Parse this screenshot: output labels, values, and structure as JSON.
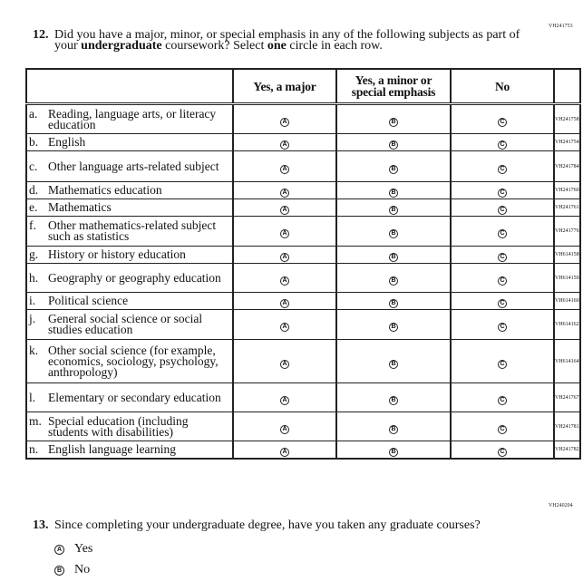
{
  "q12": {
    "code": "VH241753",
    "number": "12.",
    "text_parts": [
      "Did you have a major, minor, or special emphasis in any of the following subjects as part of your ",
      "undergraduate",
      " coursework? Select ",
      "one",
      " circle in each row."
    ],
    "columns": [
      "Yes, a major",
      "Yes, a minor or special emphasis",
      "No"
    ],
    "option_letters": [
      "A",
      "B",
      "C"
    ],
    "rows": [
      {
        "letter": "a.",
        "label": "Reading, language arts, or literacy education",
        "code": "VH241758"
      },
      {
        "letter": "b.",
        "label": "English",
        "code": "VH241754"
      },
      {
        "letter": "c.",
        "label": "Other language arts-related subject",
        "code": "VH241784"
      },
      {
        "letter": "d.",
        "label": "Mathematics education",
        "code": "VH241760"
      },
      {
        "letter": "e.",
        "label": "Mathematics",
        "code": "VH241761"
      },
      {
        "letter": "f.",
        "label": "Other mathematics-related subject such as statistics",
        "code": "VH241776"
      },
      {
        "letter": "g.",
        "label": "History or history education",
        "code": "VH614158"
      },
      {
        "letter": "h.",
        "label": "Geography or geography education",
        "code": "VH614159"
      },
      {
        "letter": "i.",
        "label": "Political science",
        "code": "VH614160"
      },
      {
        "letter": "j.",
        "label": "General social science or social studies education",
        "code": "VH614162"
      },
      {
        "letter": "k.",
        "label": "Other social science (for example, economics, sociology, psychology, anthropology)",
        "code": "VH614164"
      },
      {
        "letter": "l.",
        "label": "Elementary or secondary education",
        "code": "VH241767"
      },
      {
        "letter": "m.",
        "label": "Special education (including students with disabilities)",
        "code": "VH241781"
      },
      {
        "letter": "n.",
        "label": "English language learning",
        "code": "VH241782"
      }
    ]
  },
  "q13": {
    "code": "VH240204",
    "number": "13.",
    "text": "Since completing your undergraduate degree, have you taken any graduate courses?",
    "options": [
      {
        "letter": "A",
        "label": "Yes"
      },
      {
        "letter": "B",
        "label": "No"
      }
    ]
  }
}
